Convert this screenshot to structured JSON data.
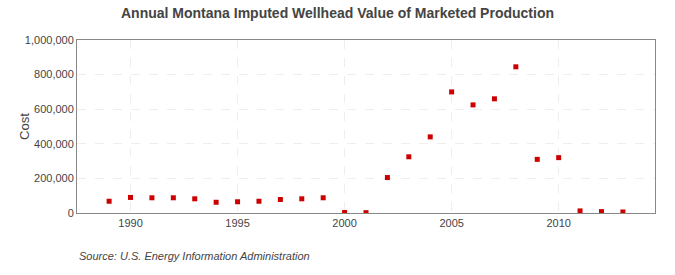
{
  "chart_data": {
    "type": "scatter",
    "title": "Annual Montana Imputed Wellhead Value of Marketed Production",
    "ylabel": "Cost",
    "annotations": [
      "Source: U.S. Energy Information Administration"
    ],
    "x": [
      1989,
      1990,
      1991,
      1992,
      1993,
      1994,
      1995,
      1996,
      1997,
      1998,
      1999,
      2000,
      2001,
      2002,
      2003,
      2004,
      2005,
      2006,
      2007,
      2008,
      2009,
      2010,
      2011,
      2012,
      2013
    ],
    "values": [
      68000,
      90000,
      88000,
      88000,
      82000,
      62000,
      65000,
      68000,
      78000,
      82000,
      88000,
      3000,
      2000,
      205000,
      325000,
      440000,
      700000,
      625000,
      660000,
      845000,
      310000,
      320000,
      12000,
      8000,
      6000
    ],
    "color": "#cc0000",
    "marker": "square",
    "xlim": [
      1987.5,
      2014.5
    ],
    "xticks": [
      1990,
      1995,
      2000,
      2005,
      2010
    ],
    "ylim": [
      0,
      1000000
    ],
    "yticks": [
      0,
      {
        "value": 200000,
        "label": "200,000"
      },
      {
        "value": 400000,
        "label": "400,000"
      },
      {
        "value": 600000,
        "label": "600,000"
      },
      {
        "value": 800000,
        "label": "800,000"
      },
      {
        "value": 1000000,
        "label": "1,000,000"
      }
    ],
    "grid": true
  }
}
